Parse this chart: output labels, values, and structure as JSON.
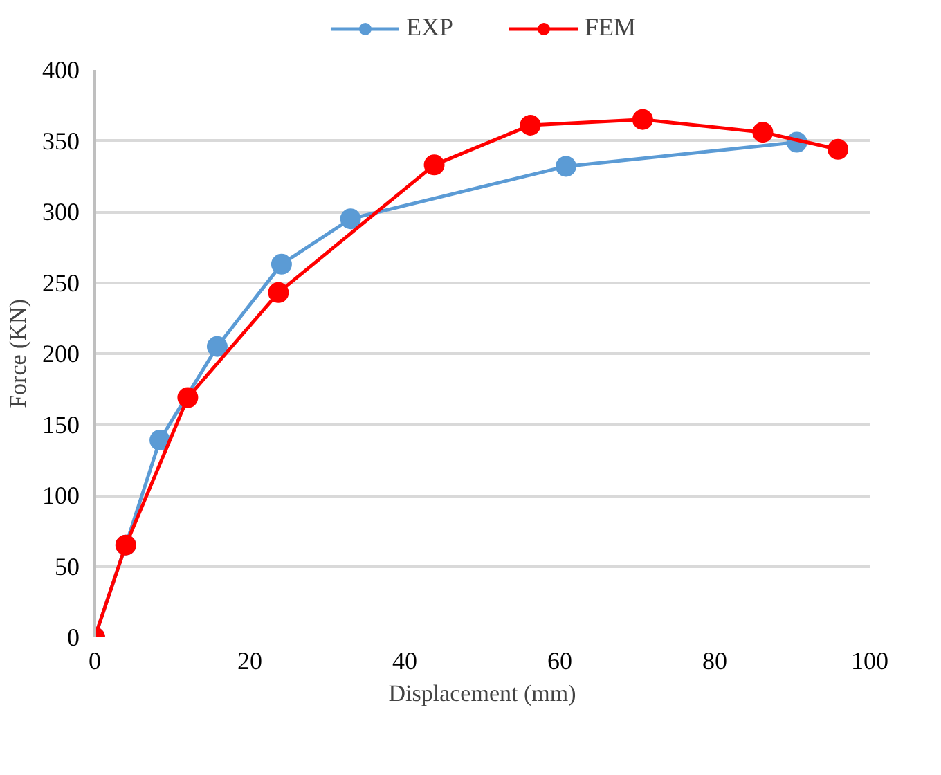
{
  "chart_data": {
    "type": "line",
    "xlabel": "Displacement (mm)",
    "ylabel": "Force (KN)",
    "xlim": [
      0,
      100
    ],
    "xticks": [
      0,
      20,
      40,
      60,
      80,
      100
    ],
    "ylim": [
      0,
      400
    ],
    "yticks": [
      0,
      50,
      100,
      150,
      200,
      250,
      300,
      350,
      400
    ],
    "grid": "y",
    "legend": "top",
    "marker": "circle",
    "line_style": "solid",
    "series": [
      {
        "name": "EXP",
        "color": "#5b9bd5",
        "x": [
          0,
          4,
          8.4,
          15.8,
          24.1,
          33.0,
          60.8,
          90.6
        ],
        "values": [
          0,
          65,
          139,
          205,
          263,
          295,
          332,
          349
        ]
      },
      {
        "name": "FEM",
        "color": "#ff0000",
        "x": [
          0,
          4,
          12.0,
          23.7,
          43.8,
          56.2,
          70.7,
          86.2,
          95.9
        ],
        "values": [
          0,
          65,
          169,
          243,
          333,
          361,
          365,
          356,
          344
        ]
      }
    ]
  }
}
